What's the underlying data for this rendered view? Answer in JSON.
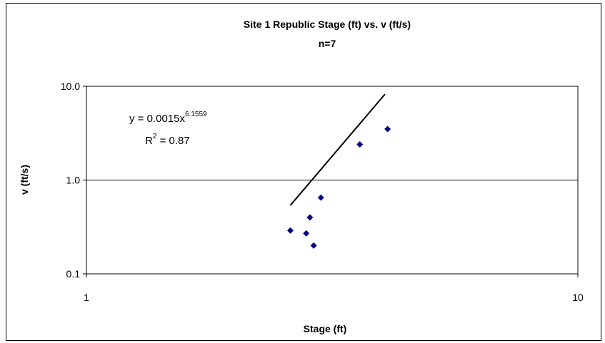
{
  "chart_data": {
    "type": "scatter",
    "title": "Site 1 Republic Stage (ft) vs. v (ft/s)",
    "subtitle": "n=7",
    "xlabel": "Stage (ft)",
    "ylabel": "v (ft/s)",
    "x_scale": "log",
    "y_scale": "log",
    "xlim": [
      1,
      10
    ],
    "ylim": [
      0.1,
      10
    ],
    "x_ticks": [
      "1",
      "10"
    ],
    "y_ticks": [
      "0.1",
      "1.0",
      "10.0"
    ],
    "grid": "horizontal major",
    "legend": "none",
    "marker_color": "#000080",
    "trendline_color": "#000000",
    "series": [
      {
        "points": [
          {
            "x": 2.6,
            "y": 0.29
          },
          {
            "x": 2.8,
            "y": 0.27
          },
          {
            "x": 2.85,
            "y": 0.4
          },
          {
            "x": 2.9,
            "y": 0.2
          },
          {
            "x": 3.0,
            "y": 0.65
          },
          {
            "x": 3.6,
            "y": 2.4
          },
          {
            "x": 4.1,
            "y": 3.5
          }
        ]
      }
    ],
    "trendline": {
      "type": "power",
      "coefficient": 0.0015,
      "exponent": 6.1559,
      "x_range": [
        2.6,
        4.05
      ]
    },
    "annotation": {
      "equation_prefix": "y = 0.0015x",
      "equation_exponent": "6.1559",
      "r2_prefix": "R",
      "r2_sup": "2",
      "r2_suffix": " = 0.87"
    }
  }
}
